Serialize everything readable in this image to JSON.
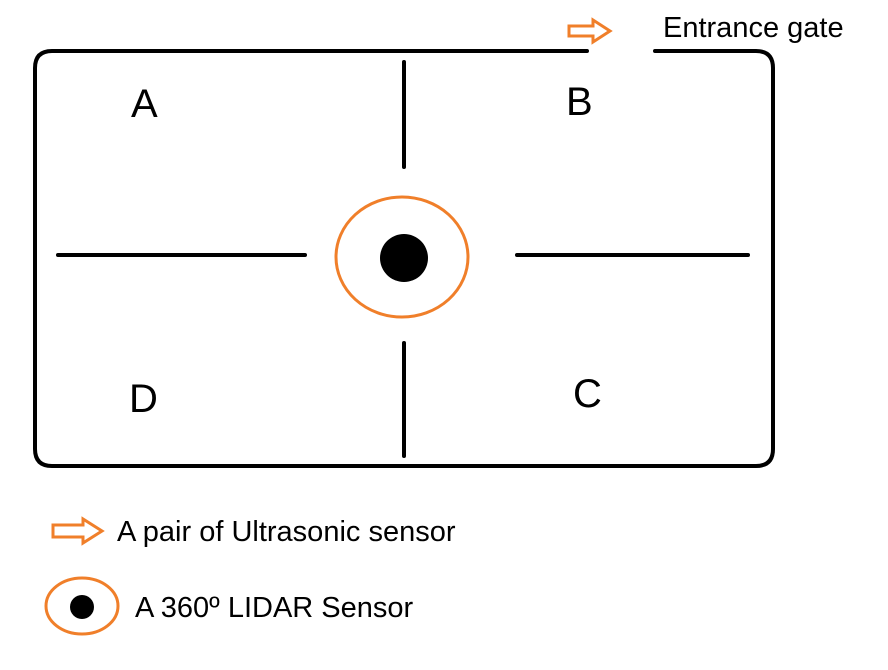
{
  "gate": {
    "label": "Entrance gate"
  },
  "zones": [
    "A",
    "B",
    "C",
    "D"
  ],
  "legend": {
    "ultrasonic": "A pair of Ultrasonic sensor",
    "lidar": "A 360º LIDAR Sensor"
  },
  "colors": {
    "sensor": "#f07f2a",
    "stroke": "#000000"
  },
  "icons": {
    "ultrasonic": "orange-hollow-arrow-icon",
    "lidar": "orange-ring-black-dot-icon"
  }
}
